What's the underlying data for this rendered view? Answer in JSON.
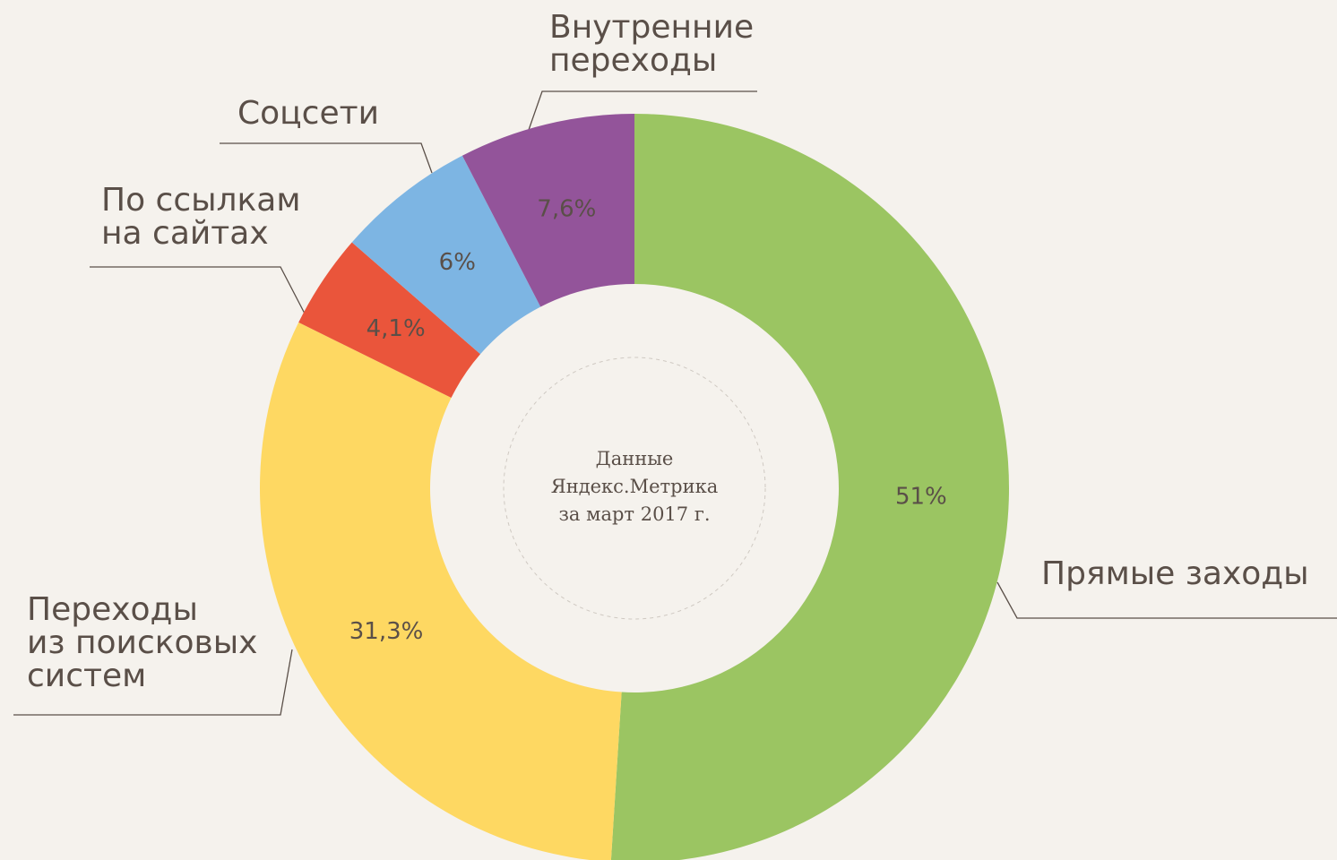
{
  "chart_data": {
    "type": "donut",
    "categories": [
      "Прямые заходы",
      "Переходы\nиз поисковых\nсистем",
      "По ссылкам\nна сайтах",
      "Соцсети",
      "Внутренние\nпереходы"
    ],
    "values": [
      51,
      31.3,
      4.1,
      6,
      7.6
    ],
    "value_labels": [
      "51%",
      "31,3%",
      "4,1%",
      "6%",
      "7,6%"
    ],
    "colors": [
      "#9bc562",
      "#fed862",
      "#ea553b",
      "#7db5e3",
      "#93549a"
    ],
    "annotation": "Данные\nЯндекс.Метрика\nза март 2017 г."
  }
}
